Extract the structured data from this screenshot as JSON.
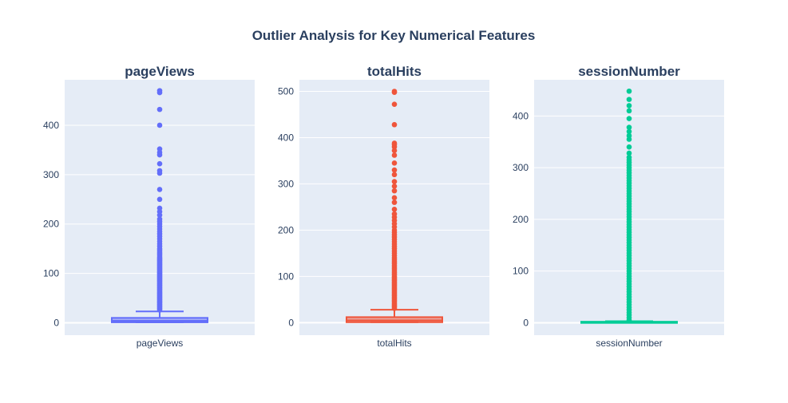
{
  "chart_data": {
    "type": "box",
    "title": "Outlier Analysis for Key Numerical Features",
    "panels": [
      {
        "subtitle": "pageViews",
        "category": "pageViews",
        "color": "#636efa",
        "yticks": [
          0,
          100,
          200,
          300,
          400
        ],
        "yrange": [
          -25,
          492
        ],
        "box": {
          "q1": 1,
          "median": 4,
          "q3": 10,
          "lower_fence": 1,
          "upper_fence": 23
        },
        "outliers": [
          26,
          28,
          30,
          32,
          34,
          36,
          38,
          40,
          42,
          44,
          46,
          48,
          50,
          52,
          54,
          56,
          58,
          60,
          62,
          64,
          66,
          68,
          70,
          72,
          74,
          76,
          78,
          80,
          82,
          84,
          86,
          88,
          90,
          92,
          94,
          96,
          98,
          100,
          102,
          104,
          106,
          108,
          110,
          112,
          114,
          116,
          118,
          120,
          122,
          124,
          126,
          128,
          130,
          132,
          135,
          138,
          141,
          144,
          147,
          150,
          155,
          160,
          165,
          170,
          175,
          180,
          185,
          190,
          195,
          200,
          205,
          210,
          218,
          225,
          232,
          250,
          270,
          303,
          308,
          322,
          340,
          345,
          352,
          400,
          432,
          466,
          470
        ]
      },
      {
        "subtitle": "totalHits",
        "category": "totalHits",
        "color": "#ef553b",
        "yticks": [
          0,
          100,
          200,
          300,
          400,
          500
        ],
        "yrange": [
          -27,
          525
        ],
        "box": {
          "q1": 1,
          "median": 5,
          "q3": 12,
          "lower_fence": 1,
          "upper_fence": 28
        },
        "outliers": [
          31,
          34,
          37,
          40,
          43,
          46,
          49,
          52,
          55,
          58,
          61,
          64,
          67,
          70,
          73,
          76,
          79,
          82,
          85,
          88,
          91,
          94,
          97,
          100,
          104,
          108,
          112,
          116,
          120,
          124,
          128,
          132,
          136,
          140,
          145,
          150,
          155,
          160,
          165,
          170,
          175,
          180,
          185,
          190,
          195,
          200,
          207,
          214,
          221,
          228,
          235,
          245,
          260,
          270,
          285,
          295,
          305,
          320,
          330,
          345,
          362,
          372,
          380,
          385,
          388,
          428,
          472,
          498,
          500
        ]
      },
      {
        "subtitle": "sessionNumber",
        "category": "sessionNumber",
        "color": "#00cc96",
        "yticks": [
          0,
          100,
          200,
          300,
          400
        ],
        "yrange": [
          -24,
          470
        ],
        "box": {
          "q1": 1,
          "median": 1,
          "q3": 2,
          "lower_fence": 1,
          "upper_fence": 3
        },
        "outliers": [
          5,
          10,
          15,
          20,
          25,
          30,
          35,
          40,
          45,
          50,
          55,
          60,
          65,
          70,
          75,
          80,
          85,
          90,
          95,
          100,
          105,
          110,
          115,
          120,
          125,
          130,
          135,
          140,
          145,
          150,
          155,
          160,
          165,
          170,
          175,
          180,
          185,
          190,
          195,
          200,
          205,
          210,
          215,
          220,
          225,
          230,
          235,
          240,
          245,
          250,
          255,
          260,
          265,
          270,
          275,
          280,
          285,
          290,
          295,
          300,
          305,
          310,
          315,
          320,
          328,
          340,
          355,
          362,
          370,
          378,
          395,
          410,
          420,
          432,
          448
        ]
      }
    ]
  }
}
